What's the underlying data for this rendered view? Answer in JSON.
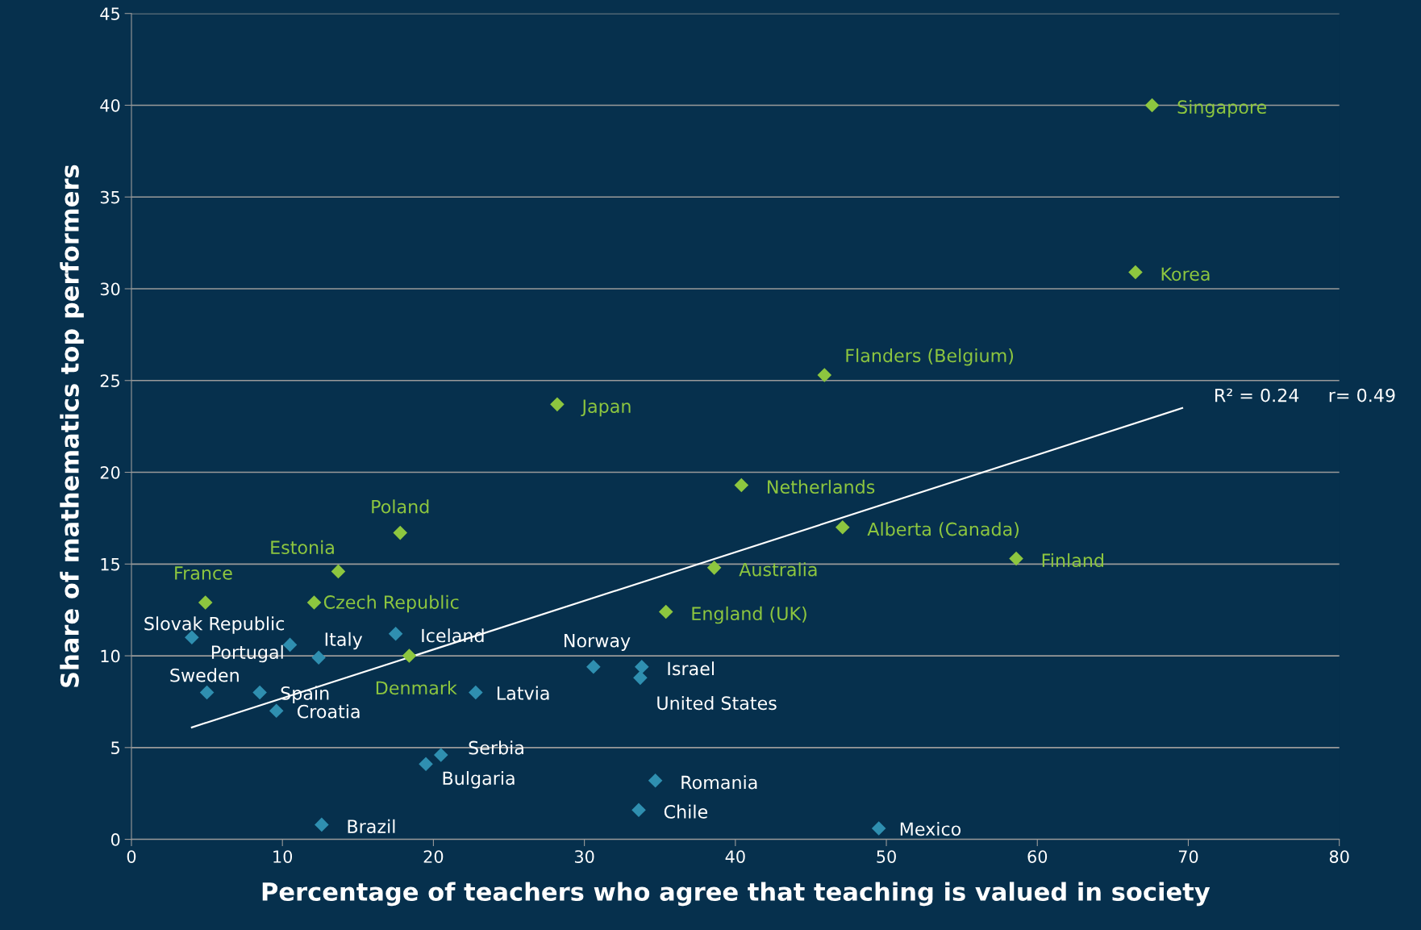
{
  "chart_data": {
    "type": "scatter",
    "xlabel": "Percentage of teachers who agree that teaching is valued in society",
    "ylabel": "Share of mathematics top performers",
    "xlim": [
      0,
      80
    ],
    "xticks": [
      0,
      10,
      20,
      30,
      40,
      50,
      60,
      70,
      80
    ],
    "ylim": [
      0,
      45
    ],
    "yticks": [
      0,
      5,
      10,
      15,
      20,
      25,
      30,
      35,
      40,
      45
    ],
    "grid": "y",
    "marker": "diamond",
    "series": [
      {
        "color": "#8dc63f",
        "x": [
          67.6,
          66.5,
          45.9,
          28.2,
          40.4,
          47.1,
          58.6,
          38.6,
          35.4,
          17.8,
          13.7,
          4.9,
          12.1,
          18.4
        ],
        "values": [
          40.0,
          30.9,
          25.3,
          23.7,
          19.3,
          17.0,
          15.3,
          14.8,
          12.4,
          16.7,
          14.6,
          12.9,
          12.9,
          10.0
        ],
        "value_labels": [
          "Singapore",
          "Korea",
          "Flanders (Belgium)",
          "Japan",
          "Netherlands",
          "Alberta (Canada)",
          "Finland",
          "Australia",
          "England (UK)",
          "Poland",
          "Estonia",
          "France",
          "Czech Republic",
          "Denmark"
        ]
      },
      {
        "color": "#2f8fb0",
        "x": [
          4.0,
          10.5,
          12.4,
          17.5,
          5.0,
          8.5,
          9.6,
          22.8,
          30.6,
          33.8,
          33.7,
          20.5,
          19.5,
          34.7,
          33.6,
          12.6,
          49.5
        ],
        "values": [
          11.0,
          10.6,
          9.9,
          11.2,
          8.0,
          8.0,
          7.0,
          8.0,
          9.4,
          9.4,
          8.8,
          4.6,
          4.1,
          3.2,
          1.6,
          0.8,
          0.6
        ],
        "value_labels": [
          "Slovak Republic",
          "Portugal",
          "Italy",
          "Iceland",
          "Sweden",
          "Spain",
          "Croatia",
          "Latvia",
          "Norway",
          "Israel",
          "United States",
          "Serbia",
          "Bulgaria",
          "Romania",
          "Chile",
          "Brazil",
          "Mexico"
        ]
      },
      {
        "type": "line",
        "marker": "none",
        "color": "#ffffff",
        "x": [
          4.0,
          69.6
        ],
        "values": [
          6.1,
          23.5
        ]
      }
    ],
    "annotations": [
      {
        "text": "R² = 0.24     r= 0.49",
        "x": 69.6,
        "y": 23.5
      }
    ]
  }
}
